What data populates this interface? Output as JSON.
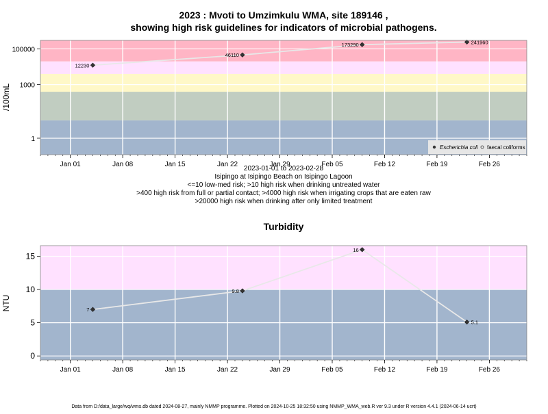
{
  "figure": {
    "title_line1": "2023 : Mvoti to Umzimkulu WMA, site 189146 ,",
    "title_line2": "showing high risk guidelines for indicators of microbial pathogens.",
    "footer": "Data from D:/data_large/wq/wms.db dated 2024-08-27, mainly NMMP programme. Plotted on 2024-10-25 18:32:50 using NMMP_WMA_web.R ver 9.3 under R version 4.4.1 (2024-06-14 ucrt)"
  },
  "chart_data": [
    {
      "type": "line",
      "title": "",
      "ylabel": "/100mL",
      "yscale": "log",
      "ylim": [
        0.12,
        300000
      ],
      "xlim": [
        "2022-12-28",
        "2023-03-03"
      ],
      "x_ticks": [
        "2023-01-01",
        "2023-01-08",
        "2023-01-15",
        "2023-01-22",
        "2023-01-29",
        "2023-02-05",
        "2023-02-12",
        "2023-02-19",
        "2023-02-26"
      ],
      "x_tick_labels": [
        "Jan 01",
        "Jan 08",
        "Jan 15",
        "Jan 22",
        "Jan 29",
        "Feb 05",
        "Feb 12",
        "Feb 19",
        "Feb 26"
      ],
      "y_ticks": [
        1,
        1000,
        100000
      ],
      "y_tick_labels": [
        "1",
        "1000",
        "100000"
      ],
      "bands": [
        {
          "from": 0.12,
          "to": 10,
          "color": "#a2b5cd"
        },
        {
          "from": 10,
          "to": 400,
          "color": "#c1cdc1"
        },
        {
          "from": 400,
          "to": 4000,
          "color": "#fff8c8"
        },
        {
          "from": 4000,
          "to": 20000,
          "color": "#ffe1ff"
        },
        {
          "from": 20000,
          "to": 300000,
          "color": "#ffb5c5"
        }
      ],
      "series": [
        {
          "name": "Escherichia coli",
          "x": [
            "2023-01-04",
            "2023-01-24",
            "2023-02-09",
            "2023-02-23"
          ],
          "y": [
            12230,
            46110,
            173290,
            241960
          ],
          "labels": [
            "12230",
            "46110",
            "173290",
            "241960"
          ]
        },
        {
          "name": "faecal coliforms",
          "x": [],
          "y": [],
          "labels": []
        }
      ],
      "legend_position": "bottom-right",
      "grid": true,
      "subtitle_lines": [
        "2023-01-01 to 2023-02-28",
        "Isipingo at Isipingo Beach on Isipingo Lagoon",
        "<=10 low-med risk; >10 high risk when drinking untreated water",
        ">400 high risk from full or partial contact; >4000 high risk when irrigating crops that are eaten raw",
        ">20000 high risk when drinking after only limited treatment"
      ]
    },
    {
      "type": "line",
      "title": "Turbidity",
      "ylabel": "NTU",
      "yscale": "linear",
      "ylim": [
        -0.6,
        16.6
      ],
      "xlim": [
        "2022-12-28",
        "2023-03-03"
      ],
      "x_ticks": [
        "2023-01-01",
        "2023-01-08",
        "2023-01-15",
        "2023-01-22",
        "2023-01-29",
        "2023-02-05",
        "2023-02-12",
        "2023-02-19",
        "2023-02-26"
      ],
      "x_tick_labels": [
        "Jan 01",
        "Jan 08",
        "Jan 15",
        "Jan 22",
        "Jan 29",
        "Feb 05",
        "Feb 12",
        "Feb 19",
        "Feb 26"
      ],
      "y_ticks": [
        0,
        5,
        10,
        15
      ],
      "y_tick_labels": [
        "0",
        "5",
        "10",
        "15"
      ],
      "bands": [
        {
          "from": -0.6,
          "to": 10,
          "color": "#a2b5cd"
        },
        {
          "from": 10,
          "to": 16.6,
          "color": "#ffe1ff"
        }
      ],
      "series": [
        {
          "name": "",
          "x": [
            "2023-01-04",
            "2023-01-24",
            "2023-02-09",
            "2023-02-23"
          ],
          "y": [
            7,
            9.8,
            16,
            5.1
          ],
          "labels": [
            "7",
            "9.8",
            "16",
            "5.1"
          ]
        }
      ],
      "grid": true
    }
  ]
}
